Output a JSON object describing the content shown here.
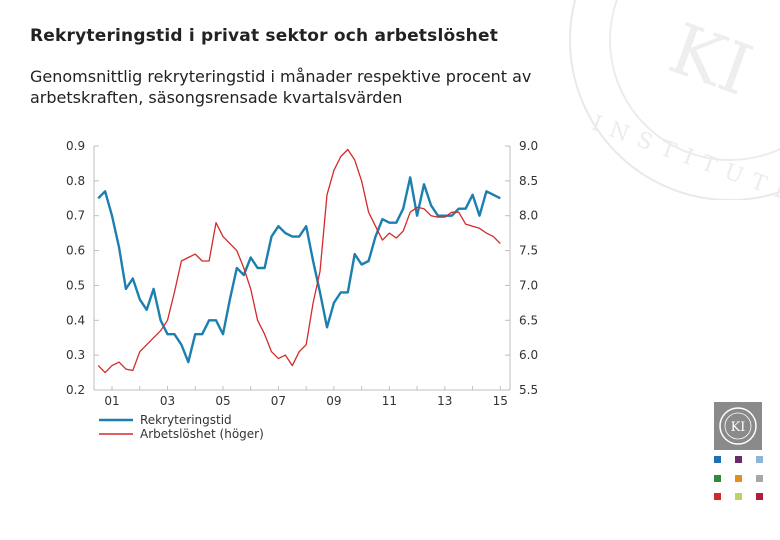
{
  "header": {
    "title": "Rekryteringstid i privat sektor och arbetslöshet",
    "subtitle": "Genomsnittlig rekryteringstid i månader respektive procent av arbetskraften, säsongsrensade kvartalsvärden"
  },
  "watermark": {
    "letters": "KI",
    "ring_text": "INSTITUTET"
  },
  "chart_data": {
    "type": "line",
    "x_tick_labels": [
      "01",
      "03",
      "05",
      "07",
      "09",
      "11",
      "13",
      "15"
    ],
    "x_start_year": 2000,
    "ylim_left": [
      0.2,
      0.9
    ],
    "yticks_left": [
      "0.2",
      "0.3",
      "0.4",
      "0.5",
      "0.6",
      "0.7",
      "0.8",
      "0.9"
    ],
    "ylim_right": [
      5.5,
      9.0
    ],
    "yticks_right": [
      "5.5",
      "6.0",
      "6.5",
      "7.0",
      "7.5",
      "8.0",
      "8.5",
      "9.0"
    ],
    "grid": false,
    "legend_position": "bottom-left",
    "series": [
      {
        "name": "Rekryteringstid",
        "axis": "left",
        "color": "#1c7fb0",
        "x": [
          2000.5,
          2000.75,
          2001,
          2001.25,
          2001.5,
          2001.75,
          2002,
          2002.25,
          2002.5,
          2002.75,
          2003,
          2003.25,
          2003.5,
          2003.75,
          2004,
          2004.25,
          2004.5,
          2004.75,
          2005,
          2005.25,
          2005.5,
          2005.75,
          2006,
          2006.25,
          2006.5,
          2006.75,
          2007,
          2007.25,
          2007.5,
          2007.75,
          2008,
          2008.25,
          2008.5,
          2008.75,
          2009,
          2009.25,
          2009.5,
          2009.75,
          2010,
          2010.25,
          2010.5,
          2010.75,
          2011,
          2011.25,
          2011.5,
          2011.75,
          2012,
          2012.25,
          2012.5,
          2012.75,
          2013,
          2013.25,
          2013.5,
          2013.75,
          2014,
          2014.25,
          2014.5,
          2014.75,
          2015
        ],
        "values": [
          0.75,
          0.77,
          0.7,
          0.61,
          0.49,
          0.52,
          0.46,
          0.43,
          0.49,
          0.4,
          0.36,
          0.36,
          0.33,
          0.28,
          0.36,
          0.36,
          0.4,
          0.4,
          0.36,
          0.46,
          0.55,
          0.53,
          0.58,
          0.55,
          0.55,
          0.64,
          0.67,
          0.65,
          0.64,
          0.64,
          0.67,
          0.57,
          0.48,
          0.38,
          0.45,
          0.48,
          0.48,
          0.59,
          0.56,
          0.57,
          0.64,
          0.69,
          0.68,
          0.68,
          0.72,
          0.81,
          0.7,
          0.79,
          0.73,
          0.7,
          0.7,
          0.7,
          0.72,
          0.72,
          0.76,
          0.7,
          0.77,
          0.76,
          0.75
        ]
      },
      {
        "name": "Arbetslöshet (höger)",
        "axis": "right",
        "color": "#d42a2a",
        "x": [
          2000.5,
          2000.75,
          2001,
          2001.25,
          2001.5,
          2001.75,
          2002,
          2002.25,
          2002.5,
          2002.75,
          2003,
          2003.25,
          2003.5,
          2003.75,
          2004,
          2004.25,
          2004.5,
          2004.75,
          2005,
          2005.25,
          2005.5,
          2005.75,
          2006,
          2006.25,
          2006.5,
          2006.75,
          2007,
          2007.25,
          2007.5,
          2007.75,
          2008,
          2008.25,
          2008.5,
          2008.75,
          2009,
          2009.25,
          2009.5,
          2009.75,
          2010,
          2010.25,
          2010.5,
          2010.75,
          2011,
          2011.25,
          2011.5,
          2011.75,
          2012,
          2012.25,
          2012.5,
          2012.75,
          2013,
          2013.25,
          2013.5,
          2013.75,
          2014,
          2014.25,
          2014.5,
          2014.75,
          2015
        ],
        "values": [
          5.85,
          5.75,
          5.85,
          5.9,
          5.8,
          5.78,
          6.05,
          6.15,
          6.25,
          6.35,
          6.5,
          6.9,
          7.35,
          7.4,
          7.45,
          7.35,
          7.35,
          7.9,
          7.7,
          7.6,
          7.5,
          7.25,
          6.95,
          6.5,
          6.3,
          6.05,
          5.95,
          6.0,
          5.85,
          6.05,
          6.15,
          6.75,
          7.2,
          8.3,
          8.65,
          8.85,
          8.95,
          8.8,
          8.5,
          8.05,
          7.85,
          7.65,
          7.75,
          7.68,
          7.78,
          8.05,
          8.12,
          8.1,
          8.0,
          7.98,
          7.98,
          8.05,
          8.05,
          7.88,
          7.85,
          7.82,
          7.75,
          7.7,
          7.6
        ]
      }
    ]
  }
}
